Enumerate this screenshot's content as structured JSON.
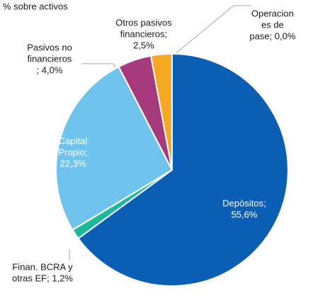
{
  "chart_data": {
    "type": "pie",
    "title": "% sobre activos",
    "labels": [
      [
        "Depósitos;",
        "55,6%"
      ],
      [
        "Finan. BCRA y",
        "otras EF; 1,2%"
      ],
      [
        "Capital",
        "Propio;",
        "22,3%"
      ],
      [
        "Pasivos no",
        "financieros",
        "; 4,0%"
      ],
      [
        "Otros pasivos",
        "financieros;",
        "2,5%"
      ],
      [
        "Operacion",
        "es de",
        "pase; 0,0%"
      ]
    ],
    "values": [
      55.6,
      1.2,
      22.3,
      4.0,
      2.5,
      0.0
    ],
    "colors": [
      "#0a5fb4",
      "#1cb899",
      "#6ec4ec",
      "#a63a7c",
      "#f7a823",
      "#9a9a9a"
    ]
  }
}
